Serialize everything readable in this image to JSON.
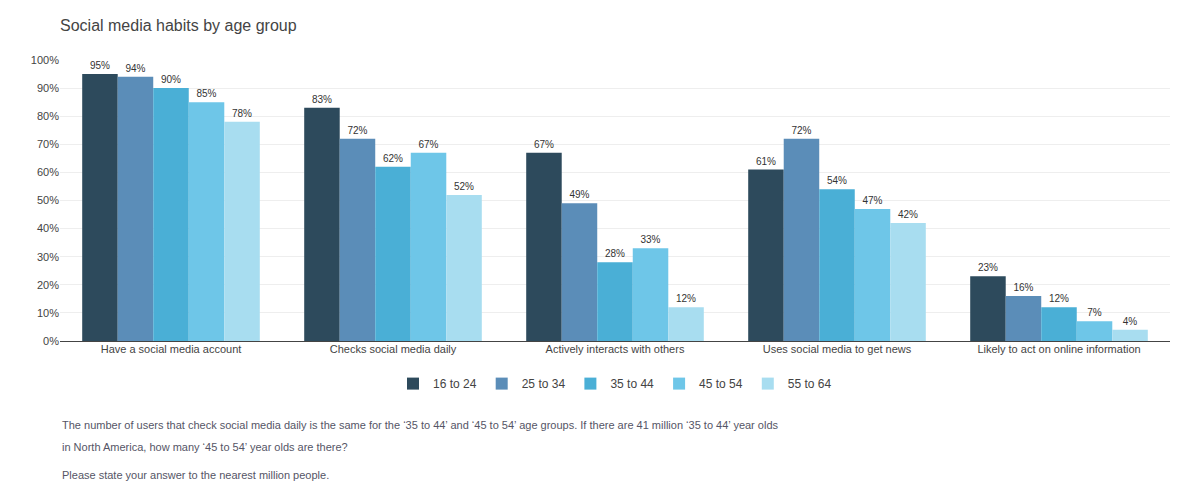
{
  "chart_data": {
    "type": "bar",
    "title": "Social media habits by age group",
    "categories": [
      "Have a social media account",
      "Checks social media daily",
      "Actively interacts with others",
      "Uses social media to get news",
      "Likely to act on online information"
    ],
    "series": [
      {
        "name": "16 to 24",
        "color": "#2d4a5c",
        "values": [
          95,
          83,
          67,
          61,
          23
        ],
        "value_labels": [
          "95%",
          "83%",
          "67%",
          "61%",
          "23%"
        ]
      },
      {
        "name": "25 to 34",
        "color": "#5b8db8",
        "values": [
          94,
          72,
          49,
          72,
          16
        ],
        "value_labels": [
          "94%",
          "72%",
          "49%",
          "72%",
          "16%"
        ]
      },
      {
        "name": "35 to 44",
        "color": "#4aafd6",
        "values": [
          90,
          62,
          28,
          54,
          12
        ],
        "value_labels": [
          "90%",
          "62%",
          "28%",
          "54%",
          "12%"
        ]
      },
      {
        "name": "45 to 54",
        "color": "#6ec6e8",
        "values": [
          85,
          67,
          33,
          47,
          7
        ],
        "value_labels": [
          "85%",
          "67%",
          "33%",
          "47%",
          "7%"
        ]
      },
      {
        "name": "55 to 64",
        "color": "#a8ddf0",
        "values": [
          78,
          52,
          12,
          42,
          4
        ],
        "value_labels": [
          "78%",
          "52%",
          "12%",
          "42%",
          "4%"
        ]
      }
    ],
    "ylim": [
      0,
      100
    ],
    "yticks": [
      {
        "value": 0,
        "label": "0%"
      },
      {
        "value": 10,
        "label": "10%"
      },
      {
        "value": 20,
        "label": "20%"
      },
      {
        "value": 30,
        "label": "30%"
      },
      {
        "value": 40,
        "label": "40%"
      },
      {
        "value": 50,
        "label": "50%"
      },
      {
        "value": 60,
        "label": "60%"
      },
      {
        "value": 70,
        "label": "70%"
      },
      {
        "value": 80,
        "label": "80%"
      },
      {
        "value": 90,
        "label": "90%"
      },
      {
        "value": 100,
        "label": "100%"
      }
    ],
    "grid": true,
    "legend": "bottom",
    "data_labels": true,
    "annotations": [
      "The number of users that check social media daily is the same for the ‘35 to 44’ and ‘45 to 54’ age groups. If there are 41 million ‘35 to 44’ year olds",
      "in North America, how many ‘45 to 54’ year olds are there?",
      "Please state your answer to the nearest million people."
    ]
  }
}
